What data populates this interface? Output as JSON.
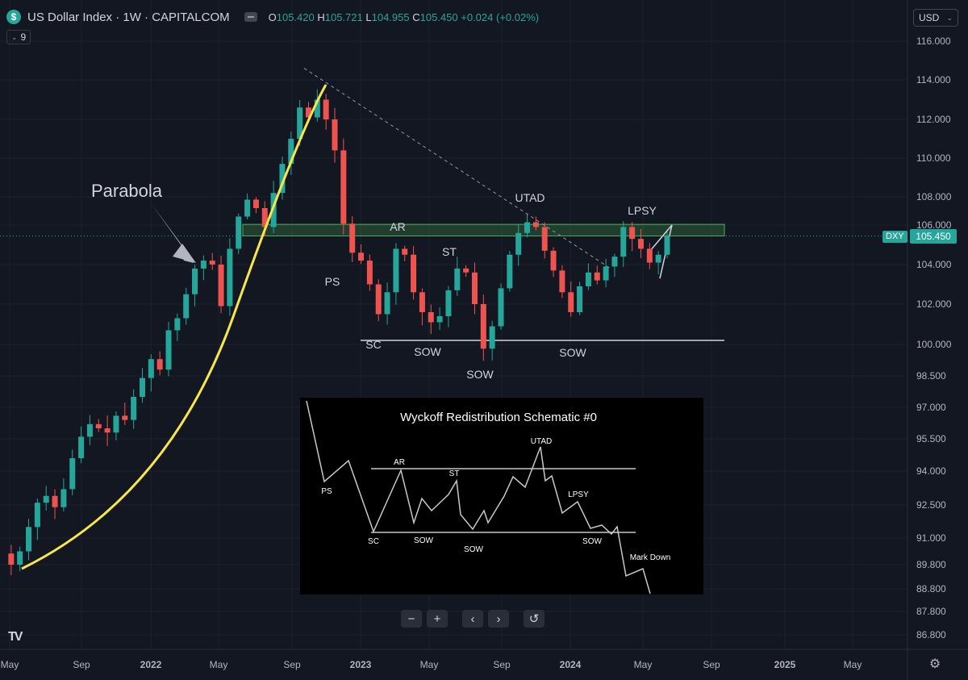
{
  "header": {
    "symbol_icon": "$",
    "title": "US Dollar Index · 1W · CAPITALCOM",
    "open_label": "O",
    "open": "105.420",
    "high_label": "H",
    "high": "105.721",
    "low_label": "L",
    "low": "104.955",
    "close_label": "C",
    "close": "105.450",
    "change": "+0.024 (+0.02%)"
  },
  "indicator_count": "9",
  "currency": "USD",
  "price_labels": {
    "ticker_tag": "DXY",
    "last_price": "105.450"
  },
  "nav_buttons": [
    "−",
    "+",
    "‹",
    "›",
    "↺"
  ],
  "colors": {
    "background": "#131722",
    "up": "#26a69a",
    "down": "#ef5350",
    "parabola": "#f8e74a",
    "grid": "#1e222d"
  },
  "chart_data": {
    "type": "candlestick",
    "symbol": "DXY",
    "timeframe": "1W",
    "x_ticks": [
      "May",
      "Sep",
      "2022",
      "May",
      "Sep",
      "2023",
      "May",
      "Sep",
      "2024",
      "May",
      "Sep",
      "2025",
      "May"
    ],
    "y_ticks": [
      116.0,
      114.0,
      112.0,
      110.0,
      108.0,
      106.0,
      104.0,
      102.0,
      100.0,
      98.5,
      97.0,
      95.5,
      94.0,
      92.5,
      91.0,
      89.8,
      88.8,
      87.8,
      86.8
    ],
    "y_tick_labels": [
      "116.000",
      "114.000",
      "112.000",
      "110.000",
      "108.000",
      "106.000",
      "104.000",
      "102.000",
      "100.000",
      "98.500",
      "97.000",
      "95.500",
      "94.000",
      "92.500",
      "91.000",
      "89.800",
      "88.800",
      "87.800",
      "86.800"
    ],
    "price_path": [
      90.3,
      89.8,
      90.4,
      91.5,
      92.6,
      92.9,
      92.4,
      93.2,
      94.6,
      95.6,
      96.2,
      96.0,
      95.8,
      96.6,
      96.4,
      97.5,
      98.4,
      99.3,
      98.8,
      100.7,
      101.3,
      102.5,
      103.8,
      104.2,
      104.0,
      101.9,
      104.8,
      106.6,
      107.8,
      107.2,
      105.9,
      108.2,
      109.7,
      111.0,
      112.6,
      112.1,
      113.0,
      112.0,
      110.4,
      106.1,
      104.6,
      104.2,
      103.0,
      101.5,
      102.6,
      104.8,
      104.5,
      102.6,
      101.6,
      101.1,
      101.4,
      102.7,
      103.8,
      103.6,
      102.0,
      99.8,
      100.9,
      102.8,
      104.5,
      105.6,
      106.2,
      105.9,
      104.7,
      103.7,
      102.6,
      101.6,
      102.9,
      103.6,
      103.2,
      103.9,
      104.4,
      105.9,
      105.3,
      104.8,
      104.1,
      104.5,
      105.45
    ],
    "annotations": [
      {
        "text": "Parabola"
      },
      {
        "text": "PS"
      },
      {
        "text": "AR"
      },
      {
        "text": "SC"
      },
      {
        "text": "SOW"
      },
      {
        "text": "ST"
      },
      {
        "text": "SOW"
      },
      {
        "text": "UTAD"
      },
      {
        "text": "SOW"
      },
      {
        "text": "LPSY"
      }
    ],
    "range_support": 100.2,
    "range_resistance": 105.7,
    "inset": {
      "title": "Wyckoff Redistribution Schematic #0",
      "labels": [
        "PS",
        "AR",
        "SC",
        "SOW",
        "ST",
        "SOW",
        "UTAD",
        "LPSY",
        "SOW",
        "Mark Down"
      ]
    }
  }
}
